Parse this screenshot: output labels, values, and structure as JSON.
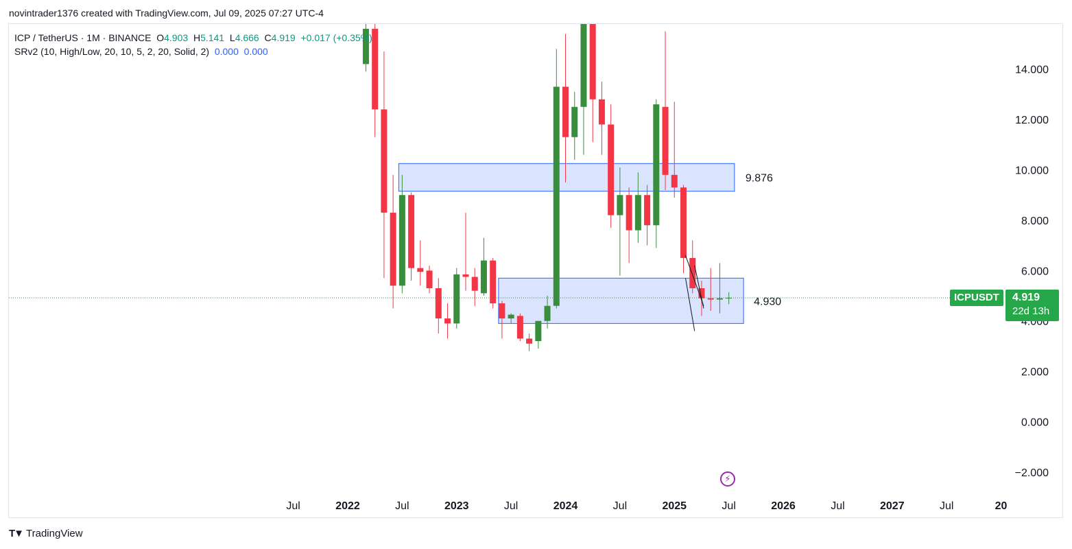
{
  "header": {
    "attribution": "novintrader1376 created with TradingView.com, Jul 09, 2025 07:27 UTC-4"
  },
  "legend": {
    "symbol": "ICP / TetherUS · 1M · BINANCE",
    "o_label": "O",
    "o_value": "4.903",
    "h_label": "H",
    "h_value": "5.141",
    "l_label": "L",
    "l_value": "4.666",
    "c_label": "C",
    "c_value": "4.919",
    "change": "+0.017 (+0.35%)",
    "indicator": "SRv2 (10, High/Low, 20, 10, 5, 2, 20, Solid, 2)",
    "indicator_v1": "0.000",
    "indicator_v2": "0.000"
  },
  "price_tag": {
    "symbol": "ICPUSDT",
    "price": "4.919",
    "countdown": "22d 13h"
  },
  "footer": {
    "brand": "TradingView"
  },
  "colors": {
    "up": "#388e3c",
    "down": "#f23645",
    "zone_fill": "#d6e1ff",
    "zone_border": "#2962ff",
    "tag": "#26a84a"
  },
  "chart_data": {
    "type": "candlestick",
    "y_axis": {
      "ticks": [
        14,
        12,
        10,
        8,
        6,
        4,
        2,
        0,
        -2
      ],
      "tick_labels": [
        "14.000",
        "12.000",
        "10.000",
        "8.000",
        "6.000",
        "4.000",
        "2.000",
        "0.000",
        "−2.000"
      ]
    },
    "x_axis": {
      "labels": [
        {
          "text": "Jul",
          "date": "2021-07"
        },
        {
          "text": "2022",
          "date": "2022-01",
          "bold": true
        },
        {
          "text": "Jul",
          "date": "2022-07"
        },
        {
          "text": "2023",
          "date": "2023-01",
          "bold": true
        },
        {
          "text": "Jul",
          "date": "2023-07"
        },
        {
          "text": "2024",
          "date": "2024-01",
          "bold": true
        },
        {
          "text": "Jul",
          "date": "2024-07"
        },
        {
          "text": "2025",
          "date": "2025-01",
          "bold": true
        },
        {
          "text": "Jul",
          "date": "2025-07"
        },
        {
          "text": "2026",
          "date": "2026-01",
          "bold": true
        },
        {
          "text": "Jul",
          "date": "2026-07"
        },
        {
          "text": "2027",
          "date": "2027-01",
          "bold": true
        },
        {
          "text": "Jul",
          "date": "2027-07"
        },
        {
          "text": "20",
          "date": "2028-01",
          "bold": true
        }
      ]
    },
    "candles": [
      {
        "date": "2022-03",
        "o": 14.2,
        "h": 15.8,
        "l": 13.9,
        "c": 15.6
      },
      {
        "date": "2022-04",
        "o": 15.6,
        "h": 16.2,
        "l": 11.3,
        "c": 12.4
      },
      {
        "date": "2022-05",
        "o": 12.4,
        "h": 14.7,
        "l": 5.7,
        "c": 8.3
      },
      {
        "date": "2022-06",
        "o": 8.3,
        "h": 9.8,
        "l": 4.5,
        "c": 5.4
      },
      {
        "date": "2022-07",
        "o": 5.4,
        "h": 9.8,
        "l": 5.1,
        "c": 9.0
      },
      {
        "date": "2022-08",
        "o": 9.0,
        "h": 9.1,
        "l": 5.6,
        "c": 6.1
      },
      {
        "date": "2022-09",
        "o": 6.1,
        "h": 7.2,
        "l": 5.4,
        "c": 5.95
      },
      {
        "date": "2022-10",
        "o": 6.0,
        "h": 6.2,
        "l": 5.1,
        "c": 5.3
      },
      {
        "date": "2022-11",
        "o": 5.3,
        "h": 5.7,
        "l": 3.5,
        "c": 4.1
      },
      {
        "date": "2022-12",
        "o": 4.1,
        "h": 4.7,
        "l": 3.3,
        "c": 3.9
      },
      {
        "date": "2023-01",
        "o": 3.9,
        "h": 6.1,
        "l": 3.7,
        "c": 5.85
      },
      {
        "date": "2023-02",
        "o": 5.85,
        "h": 8.3,
        "l": 5.2,
        "c": 5.75
      },
      {
        "date": "2023-03",
        "o": 5.75,
        "h": 6.1,
        "l": 4.6,
        "c": 5.2
      },
      {
        "date": "2023-04",
        "o": 5.1,
        "h": 7.3,
        "l": 5.0,
        "c": 6.4
      },
      {
        "date": "2023-05",
        "o": 6.4,
        "h": 6.5,
        "l": 4.5,
        "c": 4.7
      },
      {
        "date": "2023-06",
        "o": 4.7,
        "h": 4.8,
        "l": 3.3,
        "c": 4.1
      },
      {
        "date": "2023-07",
        "o": 4.1,
        "h": 4.3,
        "l": 3.9,
        "c": 4.25
      },
      {
        "date": "2023-08",
        "o": 4.2,
        "h": 4.3,
        "l": 3.2,
        "c": 3.3
      },
      {
        "date": "2023-09",
        "o": 3.3,
        "h": 3.5,
        "l": 2.8,
        "c": 3.1
      },
      {
        "date": "2023-10",
        "o": 3.2,
        "h": 4.0,
        "l": 2.9,
        "c": 4.0
      },
      {
        "date": "2023-11",
        "o": 4.0,
        "h": 5.0,
        "l": 3.7,
        "c": 4.6
      },
      {
        "date": "2023-12",
        "o": 4.6,
        "h": 14.8,
        "l": 4.5,
        "c": 13.3
      },
      {
        "date": "2024-01",
        "o": 13.3,
        "h": 15.4,
        "l": 9.5,
        "c": 11.3
      },
      {
        "date": "2024-02",
        "o": 11.3,
        "h": 13.1,
        "l": 10.4,
        "c": 12.5
      },
      {
        "date": "2024-03",
        "o": 12.5,
        "h": 16.4,
        "l": 10.6,
        "c": 15.9
      },
      {
        "date": "2024-04",
        "o": 15.9,
        "h": 16.1,
        "l": 11.1,
        "c": 12.8
      },
      {
        "date": "2024-05",
        "o": 12.8,
        "h": 13.5,
        "l": 10.6,
        "c": 11.8
      },
      {
        "date": "2024-06",
        "o": 11.8,
        "h": 12.6,
        "l": 7.7,
        "c": 8.2
      },
      {
        "date": "2024-07",
        "o": 8.2,
        "h": 10.1,
        "l": 5.8,
        "c": 9.0
      },
      {
        "date": "2024-08",
        "o": 9.0,
        "h": 9.3,
        "l": 6.3,
        "c": 7.6
      },
      {
        "date": "2024-09",
        "o": 7.6,
        "h": 9.9,
        "l": 7.1,
        "c": 9.0
      },
      {
        "date": "2024-10",
        "o": 9.0,
        "h": 9.4,
        "l": 7.0,
        "c": 7.8
      },
      {
        "date": "2024-11",
        "o": 7.8,
        "h": 12.8,
        "l": 6.9,
        "c": 12.6
      },
      {
        "date": "2024-12",
        "o": 12.5,
        "h": 15.5,
        "l": 9.2,
        "c": 9.8
      },
      {
        "date": "2025-01",
        "o": 9.8,
        "h": 12.7,
        "l": 8.9,
        "c": 9.3
      },
      {
        "date": "2025-02",
        "o": 9.3,
        "h": 9.4,
        "l": 5.9,
        "c": 6.5
      },
      {
        "date": "2025-03",
        "o": 6.5,
        "h": 7.2,
        "l": 5.1,
        "c": 5.3
      },
      {
        "date": "2025-04",
        "o": 5.3,
        "h": 5.6,
        "l": 4.2,
        "c": 4.9
      },
      {
        "date": "2025-05",
        "o": 4.9,
        "h": 6.1,
        "l": 4.4,
        "c": 4.85
      },
      {
        "date": "2025-06",
        "o": 4.85,
        "h": 6.3,
        "l": 4.3,
        "c": 4.9
      },
      {
        "date": "2025-07",
        "o": 4.903,
        "h": 5.141,
        "l": 4.666,
        "c": 4.919
      }
    ],
    "zones": [
      {
        "from": "2022-07",
        "to": "2025-08",
        "top": 10.25,
        "bottom": 9.15,
        "label": "9.876"
      },
      {
        "from": "2023-06",
        "to": "2025-09",
        "top": 5.7,
        "bottom": 3.9,
        "label": "4.930"
      }
    ],
    "current_price": 4.919,
    "trend_lines": [
      {
        "from": {
          "date": "2025-02",
          "y": 6.6
        },
        "to": {
          "date": "2025-04",
          "y": 4.6
        }
      },
      {
        "from": {
          "date": "2025-02",
          "y": 5.7
        },
        "to": {
          "date": "2025-03",
          "y": 3.6
        }
      },
      {
        "from": {
          "date": "2025-03",
          "y": 6.2
        },
        "to": {
          "date": "2025-04",
          "y": 4.5
        }
      }
    ],
    "grid": false
  }
}
